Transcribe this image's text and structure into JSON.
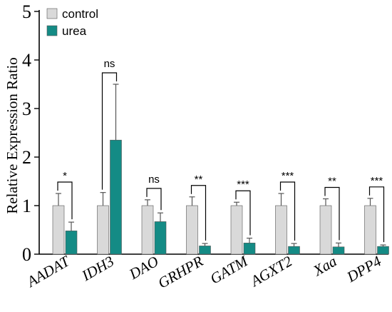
{
  "chart_data": {
    "type": "bar",
    "title": "",
    "xlabel": "",
    "ylabel": "Relative Expression Ratio",
    "ylim": [
      0,
      5
    ],
    "yticks": [
      "0",
      "1",
      "2",
      "3",
      "4",
      "5"
    ],
    "grid": false,
    "legend_position": "top-left",
    "categories": [
      "AADAT",
      "IDH3",
      "DAO",
      "GRHPR",
      "GATM",
      "AGXT2",
      "Xaa",
      "DPP4"
    ],
    "series": [
      {
        "name": "control",
        "color": "#d9d9d9",
        "values": [
          1.0,
          1.0,
          1.0,
          1.0,
          1.0,
          1.0,
          1.0,
          1.0
        ],
        "errors": [
          0.25,
          0.27,
          0.12,
          0.18,
          0.07,
          0.25,
          0.14,
          0.15
        ]
      },
      {
        "name": "urea",
        "color": "#148b85",
        "values": [
          0.48,
          2.35,
          0.67,
          0.17,
          0.23,
          0.16,
          0.15,
          0.16
        ],
        "errors": [
          0.18,
          1.15,
          0.18,
          0.05,
          0.1,
          0.06,
          0.08,
          0.03
        ]
      }
    ],
    "significance": [
      "*",
      "ns",
      "ns",
      "**",
      "***",
      "***",
      "**",
      "***"
    ]
  }
}
